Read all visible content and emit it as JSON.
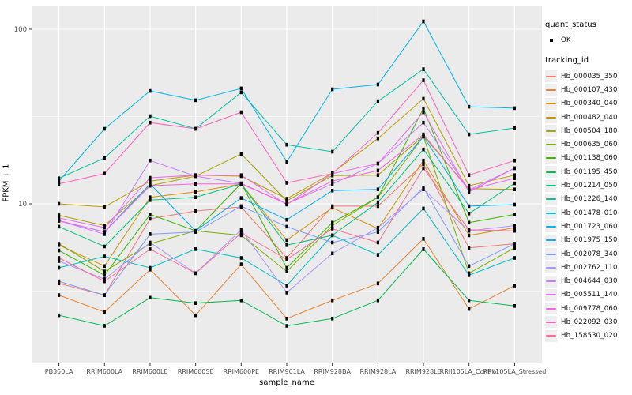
{
  "figure": {
    "background": "#FFFFFF",
    "panel_bg": "#EBEBEB",
    "grid_color": "#FFFFFF",
    "axis_text_color": "#4D4D4D",
    "tick_color": "#333333",
    "point_color": "#000000"
  },
  "legend": {
    "quant_status_title": "quant_status",
    "quant_status_items": [
      {
        "label": "OK"
      }
    ],
    "tracking_id_title": "tracking_id"
  },
  "chart_data": {
    "type": "line",
    "title": "",
    "xlabel": "sample_name",
    "ylabel": "FPKM + 1",
    "y_scale": "log10",
    "ylim": [
      1.2,
      130
    ],
    "y_major_ticks": [
      10,
      100
    ],
    "y_minor_gridlines": [
      3.162,
      31.623
    ],
    "grid": true,
    "legend_position": "right",
    "point_marker": "black square (quant_status OK)",
    "categories": [
      "PB350LA",
      "RRIM600LA",
      "RRIM600LE",
      "RRIM600SE",
      "RRIM600PE",
      "RRIM901LA",
      "RRIM928BA",
      "RRIM928LA",
      "RRIM928LE",
      "RRII105LA_Control",
      "RRII105LA_Stressed"
    ],
    "series": [
      {
        "name": "Hb_000035_350",
        "color": "#F8766D",
        "values": [
          3.5,
          3.0,
          8.2,
          9.1,
          9.6,
          4.9,
          9.7,
          9.7,
          16.9,
          5.6,
          5.9
        ]
      },
      {
        "name": "Hb_000107_430",
        "color": "#EA8331",
        "values": [
          3.0,
          2.4,
          4.2,
          2.3,
          4.5,
          2.2,
          2.8,
          3.5,
          6.3,
          2.5,
          3.4
        ]
      },
      {
        "name": "Hb_000340_040",
        "color": "#D89000",
        "values": [
          5.8,
          4.4,
          10.9,
          11.7,
          13.0,
          6.2,
          9.5,
          7.2,
          17.7,
          6.6,
          7.3
        ]
      },
      {
        "name": "Hb_000482_040",
        "color": "#C09B00",
        "values": [
          10.0,
          9.6,
          13.5,
          14.6,
          14.4,
          10.7,
          15.0,
          23.7,
          40.0,
          12.7,
          14.6
        ]
      },
      {
        "name": "Hb_000504_180",
        "color": "#A3A500",
        "values": [
          8.6,
          7.5,
          12.7,
          14.4,
          19.3,
          10.4,
          14.5,
          14.6,
          24.5,
          12.2,
          12.1
        ]
      },
      {
        "name": "Hb_000635_060",
        "color": "#7CAE00",
        "values": [
          5.9,
          4.1,
          5.9,
          7.0,
          6.6,
          4.1,
          7.5,
          10.9,
          24.3,
          4.0,
          5.6
        ]
      },
      {
        "name": "Hb_001138_060",
        "color": "#39B600",
        "values": [
          5.4,
          3.9,
          8.7,
          7.0,
          13.1,
          4.3,
          7.8,
          10.9,
          35.2,
          7.8,
          8.7
        ]
      },
      {
        "name": "Hb_001195_450",
        "color": "#00BB4E",
        "values": [
          2.3,
          2.0,
          2.9,
          2.7,
          2.8,
          2.0,
          2.2,
          2.8,
          5.5,
          2.8,
          2.6
        ]
      },
      {
        "name": "Hb_001214_050",
        "color": "#00C079",
        "values": [
          7.4,
          5.7,
          10.5,
          10.9,
          13.0,
          5.8,
          6.6,
          10.2,
          20.5,
          8.8,
          13.1
        ]
      },
      {
        "name": "Hb_001226_140",
        "color": "#00C19F",
        "values": [
          14.0,
          18.3,
          31.8,
          26.9,
          43.5,
          21.8,
          19.9,
          38.7,
          59.0,
          25.0,
          27.2
        ]
      },
      {
        "name": "Hb_001478_010",
        "color": "#00BFC4",
        "values": [
          4.3,
          5.0,
          4.3,
          5.5,
          4.9,
          3.4,
          6.6,
          5.1,
          9.4,
          3.9,
          4.9
        ]
      },
      {
        "name": "Hb_001723_060",
        "color": "#00B8E7",
        "values": [
          13.5,
          26.9,
          44.3,
          39.2,
          45.8,
          17.4,
          45.3,
          48.2,
          111.0,
          36.0,
          35.3
        ]
      },
      {
        "name": "Hb_001975_150",
        "color": "#00ACFC",
        "values": [
          8.0,
          6.9,
          13.0,
          7.0,
          10.8,
          8.1,
          11.9,
          12.1,
          24.3,
          9.7,
          9.9
        ]
      },
      {
        "name": "Hb_002078_340",
        "color": "#7F9BFF",
        "values": [
          3.6,
          3.0,
          6.7,
          6.9,
          9.7,
          7.4,
          6.0,
          6.9,
          12.4,
          4.4,
          5.9
        ]
      },
      {
        "name": "Hb_002762_110",
        "color": "#AB95FF",
        "values": [
          4.7,
          3.7,
          6.0,
          4.0,
          7.1,
          3.1,
          5.2,
          7.3,
          12.1,
          7.0,
          7.5
        ]
      },
      {
        "name": "Hb_004644_030",
        "color": "#C77CFF",
        "values": [
          8.0,
          6.7,
          17.7,
          14.4,
          13.1,
          10.0,
          13.0,
          17.0,
          29.2,
          12.0,
          16.0
        ]
      },
      {
        "name": "Hb_005511_140",
        "color": "#E76BF3",
        "values": [
          8.3,
          7.3,
          14.1,
          14.6,
          14.6,
          9.9,
          14.9,
          17.0,
          33.5,
          11.7,
          16.0
        ]
      },
      {
        "name": "Hb_009778_060",
        "color": "#F863DF",
        "values": [
          8.0,
          6.9,
          12.7,
          13.0,
          13.0,
          10.0,
          13.5,
          15.5,
          25.0,
          12.0,
          14.0
        ]
      },
      {
        "name": "Hb_022092_030",
        "color": "#FF62BC",
        "values": [
          13.0,
          14.9,
          29.2,
          26.9,
          33.5,
          13.2,
          14.9,
          25.5,
          51.0,
          14.6,
          17.7
        ]
      },
      {
        "name": "Hb_158530_020",
        "color": "#FF6B96",
        "values": [
          4.9,
          3.6,
          5.5,
          4.0,
          6.8,
          4.8,
          7.2,
          6.0,
          16.0,
          7.1,
          7.0
        ]
      }
    ]
  }
}
